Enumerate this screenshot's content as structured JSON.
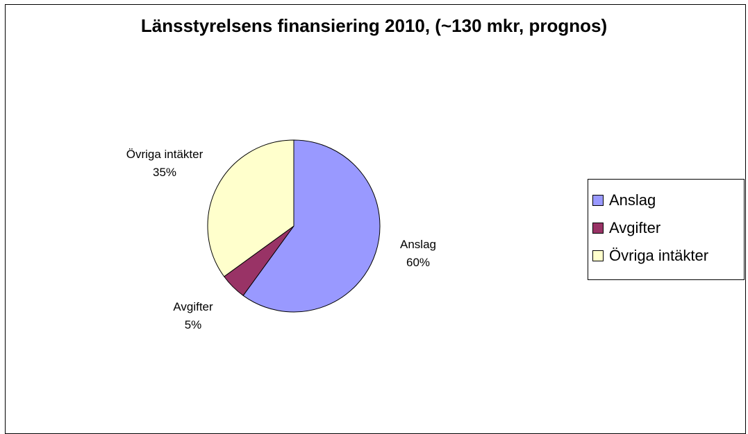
{
  "chart_data": {
    "type": "pie",
    "title": "Länsstyrelsens finansiering 2010, (~130 mkr, prognos)",
    "slices": [
      {
        "name": "Anslag",
        "value": 60,
        "label": "60%",
        "color": "#9999ff"
      },
      {
        "name": "Avgifter",
        "value": 5,
        "label": "5%",
        "color": "#993366"
      },
      {
        "name": "Övriga intäkter",
        "value": 35,
        "label": "35%",
        "color": "#ffffcc"
      }
    ],
    "legend": {
      "placement": "right",
      "entries": [
        "Anslag",
        "Avgifter",
        "Övriga intäkter"
      ]
    }
  }
}
